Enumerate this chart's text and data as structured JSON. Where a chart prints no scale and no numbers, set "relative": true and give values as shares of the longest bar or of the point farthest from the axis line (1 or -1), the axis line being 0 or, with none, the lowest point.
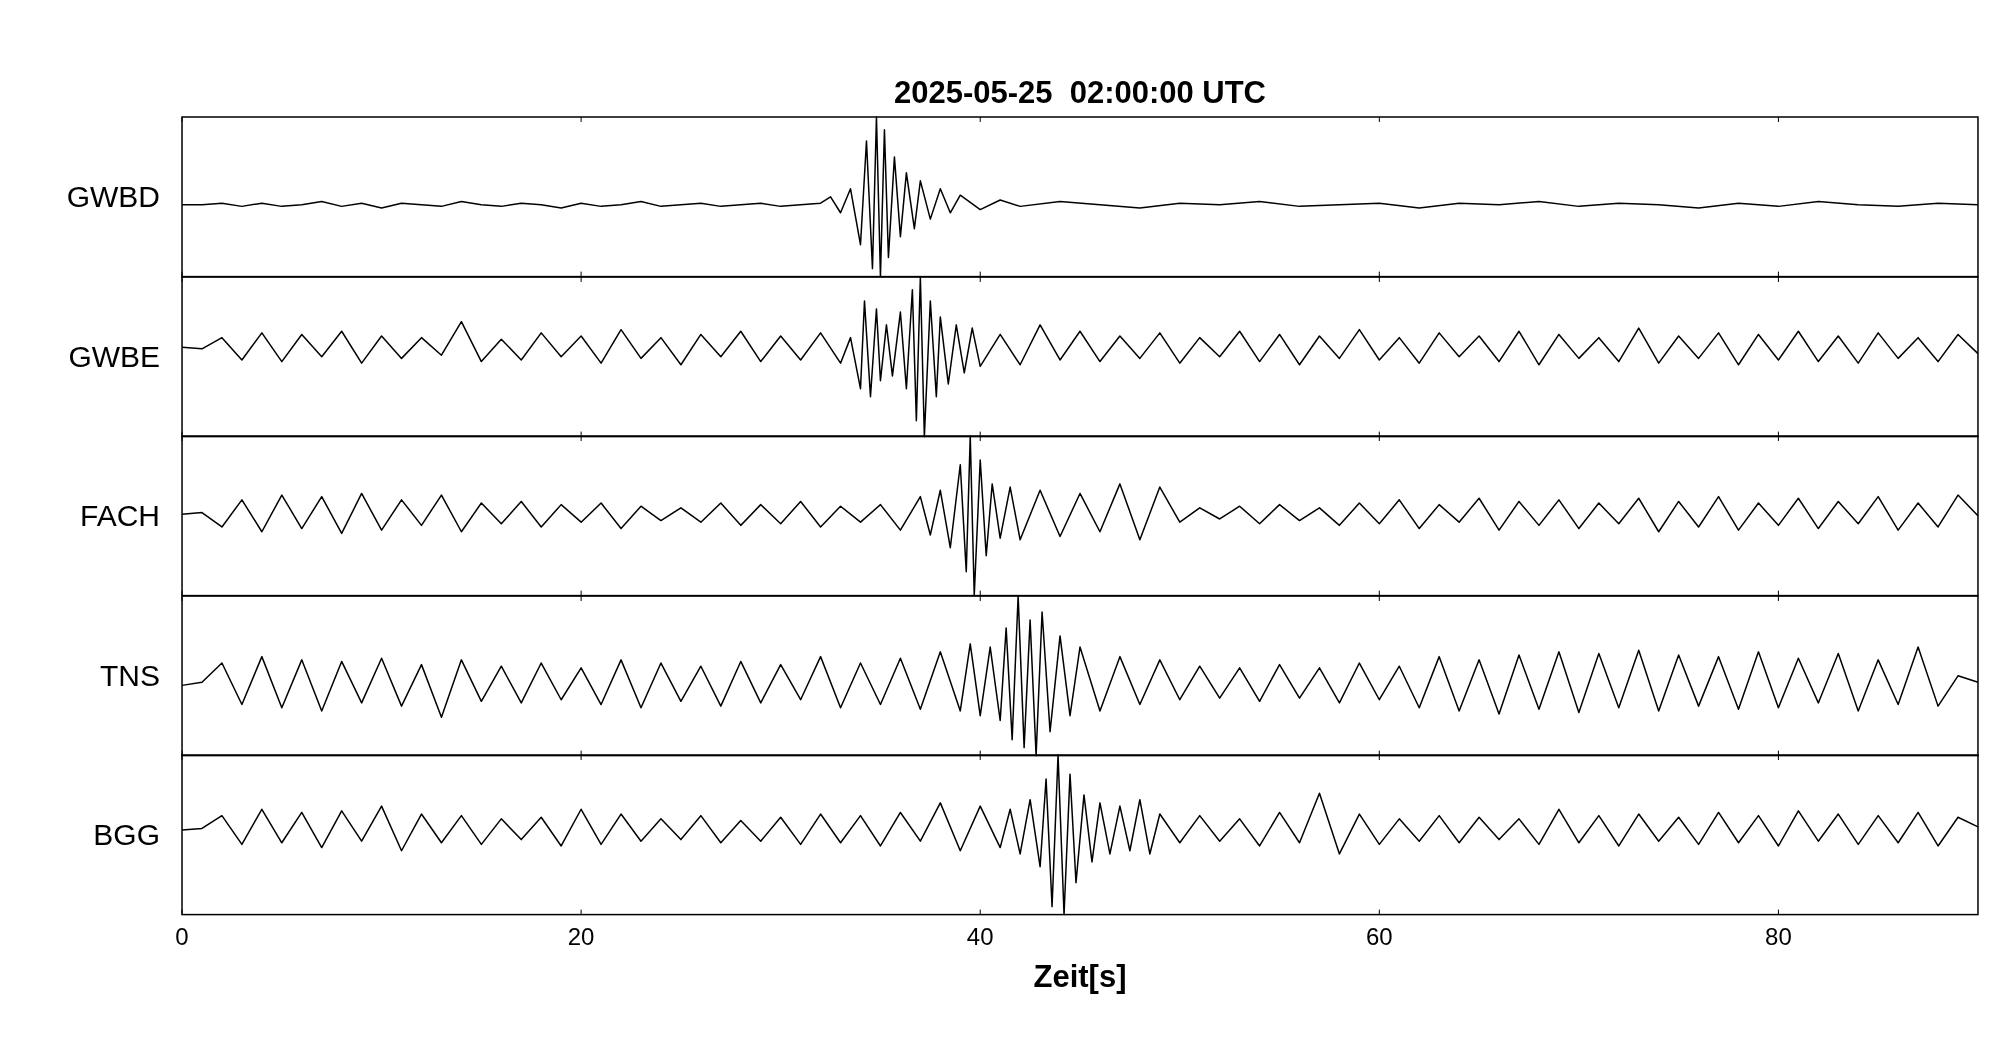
{
  "chart_data": [
    {
      "type": "line",
      "title": "2025-05-25  02:00:00 UTC",
      "ylabel": "GWBD",
      "relative": true,
      "xlim": [
        0,
        90
      ],
      "xticks": [
        0,
        20,
        40,
        60,
        80
      ],
      "tick_labels": false,
      "color": "#000000",
      "x": [
        0,
        1,
        2,
        3,
        4,
        5,
        6,
        7,
        8,
        9,
        10,
        11,
        12,
        13,
        14,
        15,
        16,
        17,
        18,
        19,
        20,
        21,
        22,
        23,
        24,
        25,
        26,
        27,
        28,
        29,
        30,
        31,
        32,
        32.5,
        33,
        33.5,
        34,
        34.3,
        34.6,
        34.8,
        35,
        35.2,
        35.4,
        35.7,
        36,
        36.3,
        36.7,
        37,
        37.5,
        38,
        38.5,
        39,
        40,
        41,
        42,
        44,
        46,
        48,
        50,
        52,
        54,
        56,
        58,
        60,
        62,
        64,
        66,
        68,
        70,
        72,
        74,
        76,
        78,
        80,
        82,
        84,
        86,
        88,
        90
      ],
      "values": [
        0.45,
        0.45,
        0.46,
        0.44,
        0.46,
        0.44,
        0.45,
        0.47,
        0.44,
        0.46,
        0.43,
        0.46,
        0.45,
        0.44,
        0.47,
        0.45,
        0.44,
        0.46,
        0.45,
        0.43,
        0.46,
        0.44,
        0.45,
        0.47,
        0.44,
        0.45,
        0.46,
        0.44,
        0.45,
        0.46,
        0.44,
        0.45,
        0.46,
        0.5,
        0.4,
        0.55,
        0.2,
        0.85,
        0.05,
        1.0,
        0,
        0.92,
        0.12,
        0.75,
        0.25,
        0.65,
        0.3,
        0.6,
        0.36,
        0.55,
        0.4,
        0.51,
        0.42,
        0.48,
        0.44,
        0.47,
        0.45,
        0.43,
        0.46,
        0.45,
        0.47,
        0.44,
        0.45,
        0.46,
        0.43,
        0.46,
        0.45,
        0.47,
        0.44,
        0.46,
        0.45,
        0.43,
        0.46,
        0.44,
        0.47,
        0.45,
        0.44,
        0.46,
        0.45
      ]
    },
    {
      "type": "line",
      "ylabel": "GWBE",
      "relative": true,
      "xlim": [
        0,
        90
      ],
      "xticks": [
        0,
        20,
        40,
        60,
        80
      ],
      "tick_labels": false,
      "color": "#000000",
      "x": [
        0,
        1,
        2,
        3,
        4,
        5,
        6,
        7,
        8,
        9,
        10,
        11,
        12,
        13,
        14,
        15,
        16,
        17,
        18,
        19,
        20,
        21,
        22,
        23,
        24,
        25,
        26,
        27,
        28,
        29,
        30,
        31,
        32,
        33,
        33.5,
        34,
        34.2,
        34.5,
        34.8,
        35,
        35.3,
        35.6,
        36,
        36.3,
        36.6,
        36.8,
        37,
        37.2,
        37.5,
        37.8,
        38,
        38.4,
        38.8,
        39.2,
        39.6,
        40,
        41,
        42,
        43,
        44,
        45,
        46,
        47,
        48,
        49,
        50,
        51,
        52,
        53,
        54,
        55,
        56,
        57,
        58,
        59,
        60,
        61,
        62,
        63,
        64,
        65,
        66,
        67,
        68,
        69,
        70,
        71,
        72,
        73,
        74,
        75,
        76,
        77,
        78,
        79,
        80,
        81,
        82,
        83,
        84,
        85,
        86,
        87,
        88,
        89,
        90
      ],
      "values": [
        0.56,
        0.55,
        0.62,
        0.48,
        0.65,
        0.47,
        0.64,
        0.5,
        0.66,
        0.46,
        0.63,
        0.49,
        0.62,
        0.51,
        0.72,
        0.47,
        0.61,
        0.48,
        0.65,
        0.5,
        0.63,
        0.46,
        0.67,
        0.49,
        0.62,
        0.45,
        0.64,
        0.5,
        0.66,
        0.47,
        0.63,
        0.48,
        0.65,
        0.46,
        0.62,
        0.3,
        0.85,
        0.25,
        0.8,
        0.35,
        0.7,
        0.38,
        0.78,
        0.3,
        0.92,
        0.1,
        1.0,
        0,
        0.85,
        0.25,
        0.75,
        0.33,
        0.7,
        0.4,
        0.68,
        0.44,
        0.64,
        0.45,
        0.7,
        0.48,
        0.66,
        0.47,
        0.63,
        0.49,
        0.65,
        0.46,
        0.62,
        0.5,
        0.66,
        0.47,
        0.64,
        0.45,
        0.63,
        0.49,
        0.67,
        0.48,
        0.62,
        0.46,
        0.65,
        0.5,
        0.63,
        0.47,
        0.66,
        0.45,
        0.64,
        0.49,
        0.62,
        0.47,
        0.68,
        0.46,
        0.63,
        0.49,
        0.65,
        0.45,
        0.64,
        0.48,
        0.66,
        0.47,
        0.63,
        0.46,
        0.65,
        0.49,
        0.62,
        0.47,
        0.64,
        0.52
      ]
    },
    {
      "type": "line",
      "ylabel": "FACH",
      "relative": true,
      "xlim": [
        0,
        90
      ],
      "xticks": [
        0,
        20,
        40,
        60,
        80
      ],
      "tick_labels": false,
      "color": "#000000",
      "x": [
        0,
        1,
        2,
        3,
        4,
        5,
        6,
        7,
        8,
        9,
        10,
        11,
        12,
        13,
        14,
        15,
        16,
        17,
        18,
        19,
        20,
        21,
        22,
        23,
        24,
        25,
        26,
        27,
        28,
        29,
        30,
        31,
        32,
        33,
        34,
        35,
        36,
        37,
        37.5,
        38,
        38.5,
        39,
        39.3,
        39.5,
        39.7,
        40,
        40.3,
        40.6,
        41,
        41.5,
        42,
        43,
        44,
        45,
        46,
        47,
        48,
        49,
        50,
        51,
        52,
        53,
        54,
        55,
        56,
        57,
        58,
        59,
        60,
        61,
        62,
        63,
        64,
        65,
        66,
        67,
        68,
        69,
        70,
        71,
        72,
        73,
        74,
        75,
        76,
        77,
        78,
        79,
        80,
        81,
        82,
        83,
        84,
        85,
        86,
        87,
        88,
        89,
        90
      ],
      "values": [
        0.51,
        0.52,
        0.43,
        0.6,
        0.4,
        0.63,
        0.42,
        0.62,
        0.39,
        0.64,
        0.41,
        0.6,
        0.44,
        0.63,
        0.4,
        0.58,
        0.45,
        0.59,
        0.43,
        0.57,
        0.46,
        0.58,
        0.42,
        0.56,
        0.47,
        0.55,
        0.46,
        0.58,
        0.44,
        0.57,
        0.45,
        0.59,
        0.43,
        0.56,
        0.46,
        0.57,
        0.41,
        0.62,
        0.38,
        0.66,
        0.3,
        0.82,
        0.15,
        1.0,
        0,
        0.85,
        0.25,
        0.7,
        0.36,
        0.68,
        0.35,
        0.66,
        0.37,
        0.64,
        0.4,
        0.7,
        0.35,
        0.68,
        0.46,
        0.55,
        0.48,
        0.56,
        0.45,
        0.57,
        0.47,
        0.55,
        0.44,
        0.58,
        0.45,
        0.6,
        0.42,
        0.57,
        0.46,
        0.61,
        0.41,
        0.59,
        0.44,
        0.6,
        0.42,
        0.58,
        0.45,
        0.61,
        0.4,
        0.59,
        0.43,
        0.62,
        0.41,
        0.58,
        0.44,
        0.61,
        0.42,
        0.59,
        0.45,
        0.62,
        0.41,
        0.58,
        0.43,
        0.63,
        0.5
      ]
    },
    {
      "type": "line",
      "ylabel": "TNS",
      "relative": true,
      "xlim": [
        0,
        90
      ],
      "xticks": [
        0,
        20,
        40,
        60,
        80
      ],
      "tick_labels": false,
      "color": "#000000",
      "x": [
        0,
        1,
        2,
        3,
        4,
        5,
        6,
        7,
        8,
        9,
        10,
        11,
        12,
        13,
        14,
        15,
        16,
        17,
        18,
        19,
        20,
        21,
        22,
        23,
        24,
        25,
        26,
        27,
        28,
        29,
        30,
        31,
        32,
        33,
        34,
        35,
        36,
        37,
        38,
        39,
        39.5,
        40,
        40.5,
        41,
        41.3,
        41.6,
        41.9,
        42.2,
        42.5,
        42.8,
        43.1,
        43.5,
        44,
        44.5,
        45,
        46,
        47,
        48,
        49,
        50,
        51,
        52,
        53,
        54,
        55,
        56,
        57,
        58,
        59,
        60,
        61,
        62,
        63,
        64,
        65,
        66,
        67,
        68,
        69,
        70,
        71,
        72,
        73,
        74,
        75,
        76,
        77,
        78,
        79,
        80,
        81,
        82,
        83,
        84,
        85,
        86,
        87,
        88,
        89,
        90
      ],
      "values": [
        0.44,
        0.46,
        0.58,
        0.32,
        0.62,
        0.3,
        0.6,
        0.28,
        0.59,
        0.33,
        0.61,
        0.31,
        0.57,
        0.24,
        0.6,
        0.34,
        0.56,
        0.33,
        0.58,
        0.35,
        0.55,
        0.32,
        0.6,
        0.3,
        0.58,
        0.34,
        0.56,
        0.31,
        0.59,
        0.33,
        0.57,
        0.35,
        0.62,
        0.3,
        0.58,
        0.32,
        0.61,
        0.29,
        0.65,
        0.28,
        0.7,
        0.25,
        0.68,
        0.22,
        0.8,
        0.1,
        1.0,
        0.05,
        0.85,
        0,
        0.9,
        0.15,
        0.75,
        0.25,
        0.68,
        0.28,
        0.62,
        0.32,
        0.6,
        0.35,
        0.56,
        0.36,
        0.55,
        0.34,
        0.57,
        0.36,
        0.55,
        0.33,
        0.58,
        0.35,
        0.56,
        0.3,
        0.62,
        0.28,
        0.6,
        0.26,
        0.63,
        0.29,
        0.65,
        0.27,
        0.64,
        0.3,
        0.66,
        0.28,
        0.63,
        0.31,
        0.62,
        0.29,
        0.65,
        0.3,
        0.61,
        0.33,
        0.64,
        0.28,
        0.6,
        0.32,
        0.68,
        0.31,
        0.5,
        0.46
      ]
    },
    {
      "type": "line",
      "ylabel": "BGG",
      "xlabel": "Zeit[s]",
      "relative": true,
      "xlim": [
        0,
        90
      ],
      "xticks": [
        0,
        20,
        40,
        60,
        80
      ],
      "tick_labels": "x",
      "color": "#000000",
      "x": [
        0,
        1,
        2,
        3,
        4,
        5,
        6,
        7,
        8,
        9,
        10,
        11,
        12,
        13,
        14,
        15,
        16,
        17,
        18,
        19,
        20,
        21,
        22,
        23,
        24,
        25,
        26,
        27,
        28,
        29,
        30,
        31,
        32,
        33,
        34,
        35,
        36,
        37,
        38,
        39,
        40,
        41,
        41.5,
        42,
        42.5,
        43,
        43.3,
        43.6,
        43.9,
        44.2,
        44.5,
        44.8,
        45.2,
        45.6,
        46,
        46.5,
        47,
        47.5,
        48,
        48.5,
        49,
        50,
        51,
        52,
        53,
        54,
        55,
        56,
        57,
        58,
        59,
        60,
        61,
        62,
        63,
        64,
        65,
        66,
        67,
        68,
        69,
        70,
        71,
        72,
        73,
        74,
        75,
        76,
        77,
        78,
        79,
        80,
        81,
        82,
        83,
        84,
        85,
        86,
        87,
        88,
        89,
        90
      ],
      "values": [
        0.53,
        0.54,
        0.62,
        0.44,
        0.66,
        0.45,
        0.64,
        0.42,
        0.65,
        0.46,
        0.68,
        0.4,
        0.63,
        0.45,
        0.62,
        0.44,
        0.6,
        0.47,
        0.61,
        0.43,
        0.66,
        0.44,
        0.63,
        0.46,
        0.6,
        0.47,
        0.62,
        0.45,
        0.59,
        0.46,
        0.61,
        0.44,
        0.63,
        0.45,
        0.62,
        0.43,
        0.64,
        0.46,
        0.7,
        0.4,
        0.68,
        0.42,
        0.66,
        0.38,
        0.72,
        0.3,
        0.85,
        0.05,
        1.0,
        0,
        0.88,
        0.2,
        0.75,
        0.33,
        0.7,
        0.38,
        0.68,
        0.4,
        0.72,
        0.38,
        0.63,
        0.45,
        0.62,
        0.46,
        0.6,
        0.43,
        0.64,
        0.45,
        0.76,
        0.38,
        0.63,
        0.44,
        0.6,
        0.46,
        0.62,
        0.45,
        0.61,
        0.47,
        0.6,
        0.44,
        0.66,
        0.45,
        0.62,
        0.43,
        0.63,
        0.46,
        0.61,
        0.44,
        0.64,
        0.45,
        0.62,
        0.43,
        0.65,
        0.46,
        0.63,
        0.44,
        0.62,
        0.45,
        0.64,
        0.43,
        0.61,
        0.55
      ]
    }
  ]
}
